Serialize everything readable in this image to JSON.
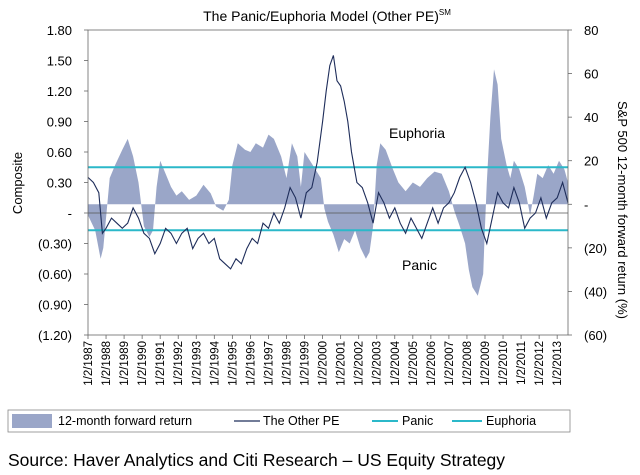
{
  "chart_data": {
    "type": "line",
    "title": "The Panic/Euphoria Model (Other PE)",
    "title_superscript": "SM",
    "ylabel": "Composite",
    "y2label": "S&P 500 12-month forward return (%)",
    "ylim": [
      -1.2,
      1.8
    ],
    "y2lim": [
      -60,
      80
    ],
    "y_ticks": [
      1.8,
      1.5,
      1.2,
      0.9,
      0.6,
      0.3,
      0,
      -0.3,
      -0.6,
      -0.9,
      -1.2
    ],
    "y_tick_labels": [
      "1.80",
      "1.50",
      "1.20",
      "0.90",
      "0.60",
      "0.30",
      "-",
      "(0.30)",
      "(0.60)",
      "(0.90)",
      "(1.20)"
    ],
    "y2_ticks": [
      80,
      60,
      40,
      20,
      0,
      -20,
      -40,
      -60
    ],
    "y2_tick_labels": [
      "80",
      "60",
      "40",
      "20",
      "-",
      "(20)",
      "(40)",
      "(60)"
    ],
    "x_tick_labels": [
      "1/2/1987",
      "1/2/1988",
      "1/2/1989",
      "1/2/1990",
      "1/2/1991",
      "1/2/1992",
      "1/2/1993",
      "1/2/1994",
      "1/2/1995",
      "1/2/1996",
      "1/2/1997",
      "1/2/1998",
      "1/2/1999",
      "1/2/2000",
      "1/2/2001",
      "1/2/2002",
      "1/2/2003",
      "1/2/2004",
      "1/2/2005",
      "1/2/2006",
      "1/2/2007",
      "1/2/2008",
      "1/2/2009",
      "1/2/2010",
      "1/2/2011",
      "1/2/2012",
      "1/2/2013"
    ],
    "x_range": [
      1987.0,
      2013.6
    ],
    "euphoria_level": 0.45,
    "panic_level": -0.17,
    "annotations": [
      "Euphoria",
      "Panic"
    ],
    "legend_position": "bottom",
    "colors": {
      "area": "#9aa6c8",
      "line": "#1e2d5a",
      "panic": "#2bb8c9",
      "euphoria": "#2bb8c9"
    },
    "series": [
      {
        "name": "12-month forward return",
        "kind": "area",
        "axis": "right",
        "x": [
          1987.0,
          1987.4,
          1987.7,
          1987.85,
          1988.2,
          1988.5,
          1988.9,
          1989.2,
          1989.5,
          1989.8,
          1990.1,
          1990.4,
          1990.6,
          1990.8,
          1991.0,
          1991.3,
          1991.6,
          1991.9,
          1992.2,
          1992.6,
          1993.0,
          1993.4,
          1993.8,
          1994.1,
          1994.5,
          1994.8,
          1995.0,
          1995.3,
          1995.7,
          1996.0,
          1996.3,
          1996.7,
          1997.0,
          1997.3,
          1997.7,
          1998.0,
          1998.3,
          1998.6,
          1998.8,
          1999.0,
          1999.3,
          1999.6,
          1999.9,
          2000.1,
          2000.3,
          2000.6,
          2000.9,
          2001.2,
          2001.5,
          2001.8,
          2002.1,
          2002.4,
          2002.6,
          2002.8,
          2003.0,
          2003.2,
          2003.5,
          2003.9,
          2004.2,
          2004.6,
          2005.0,
          2005.4,
          2005.8,
          2006.2,
          2006.6,
          2007.0,
          2007.3,
          2007.6,
          2007.9,
          2008.1,
          2008.3,
          2008.6,
          2008.9,
          2009.0,
          2009.1,
          2009.3,
          2009.5,
          2009.7,
          2009.9,
          2010.2,
          2010.4,
          2010.6,
          2010.9,
          2011.2,
          2011.5,
          2011.7,
          2011.9,
          2012.2,
          2012.5,
          2012.8,
          2013.1,
          2013.4,
          2013.6
        ],
        "values": [
          -5,
          -12,
          -25,
          -20,
          12,
          18,
          25,
          30,
          22,
          10,
          -10,
          -15,
          -12,
          8,
          20,
          14,
          8,
          4,
          6,
          2,
          4,
          9,
          5,
          -1,
          -3,
          2,
          18,
          28,
          25,
          24,
          28,
          26,
          32,
          30,
          22,
          12,
          28,
          22,
          8,
          24,
          20,
          16,
          12,
          -2,
          -8,
          -14,
          -22,
          -16,
          -18,
          -12,
          -20,
          -25,
          -22,
          -10,
          18,
          28,
          25,
          16,
          10,
          6,
          10,
          8,
          12,
          15,
          14,
          6,
          -3,
          -10,
          -18,
          -30,
          -38,
          -42,
          -32,
          -10,
          10,
          40,
          62,
          55,
          30,
          18,
          12,
          20,
          16,
          8,
          -5,
          4,
          14,
          12,
          18,
          14,
          20,
          16,
          10
        ]
      },
      {
        "name": "The Other PE",
        "kind": "line",
        "axis": "left",
        "x": [
          1987.0,
          1987.3,
          1987.6,
          1987.8,
          1988.0,
          1988.3,
          1988.6,
          1988.9,
          1989.2,
          1989.5,
          1989.8,
          1990.1,
          1990.4,
          1990.7,
          1991.0,
          1991.3,
          1991.6,
          1991.9,
          1992.2,
          1992.5,
          1992.8,
          1993.1,
          1993.4,
          1993.7,
          1994.0,
          1994.3,
          1994.6,
          1994.9,
          1995.2,
          1995.5,
          1995.8,
          1996.1,
          1996.4,
          1996.7,
          1997.0,
          1997.3,
          1997.6,
          1997.9,
          1998.2,
          1998.5,
          1998.8,
          1999.1,
          1999.4,
          1999.7,
          2000.0,
          2000.2,
          2000.4,
          2000.6,
          2000.8,
          2001.0,
          2001.2,
          2001.4,
          2001.6,
          2001.9,
          2002.2,
          2002.5,
          2002.8,
          2003.1,
          2003.4,
          2003.7,
          2004.0,
          2004.3,
          2004.6,
          2004.9,
          2005.2,
          2005.5,
          2005.8,
          2006.1,
          2006.4,
          2006.7,
          2007.0,
          2007.3,
          2007.6,
          2007.9,
          2008.2,
          2008.5,
          2008.8,
          2009.1,
          2009.4,
          2009.7,
          2010.0,
          2010.3,
          2010.6,
          2010.9,
          2011.2,
          2011.5,
          2011.8,
          2012.1,
          2012.4,
          2012.7,
          2013.0,
          2013.3,
          2013.6
        ],
        "values": [
          0.35,
          0.3,
          0.2,
          -0.2,
          -0.15,
          -0.05,
          -0.1,
          -0.15,
          -0.1,
          0.05,
          -0.05,
          -0.2,
          -0.25,
          -0.4,
          -0.3,
          -0.15,
          -0.2,
          -0.3,
          -0.2,
          -0.15,
          -0.35,
          -0.25,
          -0.2,
          -0.3,
          -0.25,
          -0.45,
          -0.5,
          -0.55,
          -0.45,
          -0.5,
          -0.35,
          -0.25,
          -0.3,
          -0.1,
          -0.15,
          0.0,
          -0.1,
          0.05,
          0.25,
          0.15,
          -0.05,
          0.2,
          0.25,
          0.5,
          0.9,
          1.2,
          1.45,
          1.55,
          1.3,
          1.25,
          1.1,
          0.9,
          0.6,
          0.3,
          0.25,
          0.1,
          -0.1,
          0.2,
          0.1,
          -0.05,
          0.05,
          -0.1,
          -0.2,
          -0.05,
          -0.15,
          -0.25,
          -0.1,
          0.05,
          -0.1,
          0.05,
          0.1,
          0.2,
          0.35,
          0.45,
          0.3,
          0.1,
          -0.15,
          -0.3,
          -0.05,
          0.2,
          0.1,
          0.05,
          0.25,
          0.1,
          -0.15,
          -0.05,
          0.0,
          0.15,
          -0.05,
          0.1,
          0.15,
          0.3,
          0.1
        ]
      },
      {
        "name": "Panic",
        "kind": "hline",
        "axis": "left",
        "value": -0.17
      },
      {
        "name": "Euphoria",
        "kind": "hline",
        "axis": "left",
        "value": 0.45
      }
    ]
  },
  "source": "Source: Haver Analytics and Citi Research – US Equity Strategy"
}
